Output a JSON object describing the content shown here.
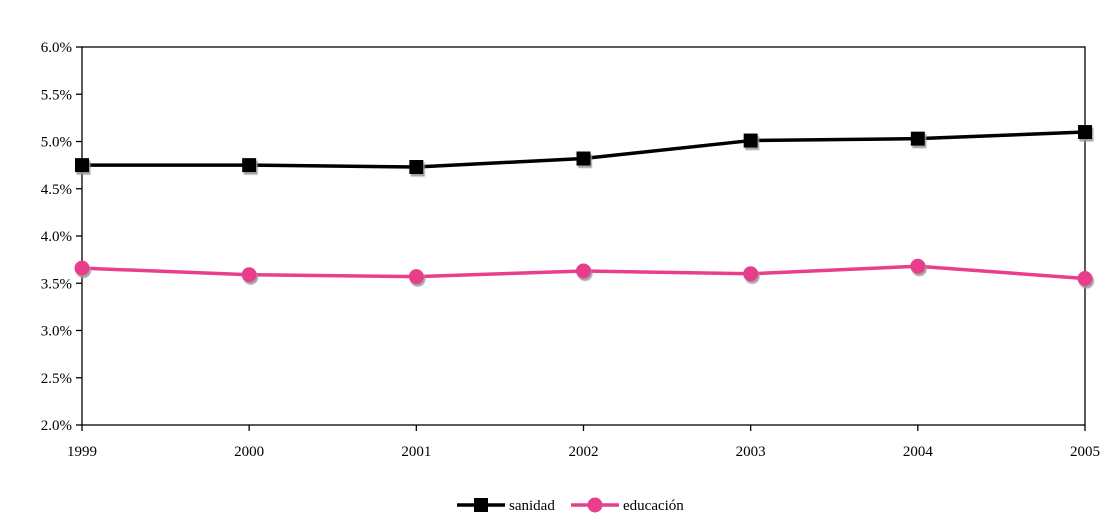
{
  "chart_data": {
    "type": "line",
    "title": "",
    "xlabel": "",
    "ylabel": "",
    "x": [
      "1999",
      "2000",
      "2001",
      "2002",
      "2003",
      "2004",
      "2005"
    ],
    "ylim": [
      0.02,
      0.06
    ],
    "yticks": [
      0.02,
      0.025,
      0.03,
      0.035,
      0.04,
      0.045,
      0.05,
      0.055,
      0.06
    ],
    "ytick_labels": [
      "2.0%",
      "2.5%",
      "3.0%",
      "3.5%",
      "4.0%",
      "4.5%",
      "5.0%",
      "5.5%",
      "6.0%"
    ],
    "grid": false,
    "legend_position": "bottom-center",
    "series": [
      {
        "name": "sanidad",
        "values": [
          0.0475,
          0.0475,
          0.0473,
          0.0482,
          0.0501,
          0.0503,
          0.051
        ],
        "color": "#000000",
        "marker": "square"
      },
      {
        "name": "educación",
        "values": [
          0.0366,
          0.0359,
          0.0357,
          0.0363,
          0.036,
          0.0368,
          0.0355
        ],
        "color": "#e83e8c",
        "marker": "circle"
      }
    ]
  }
}
